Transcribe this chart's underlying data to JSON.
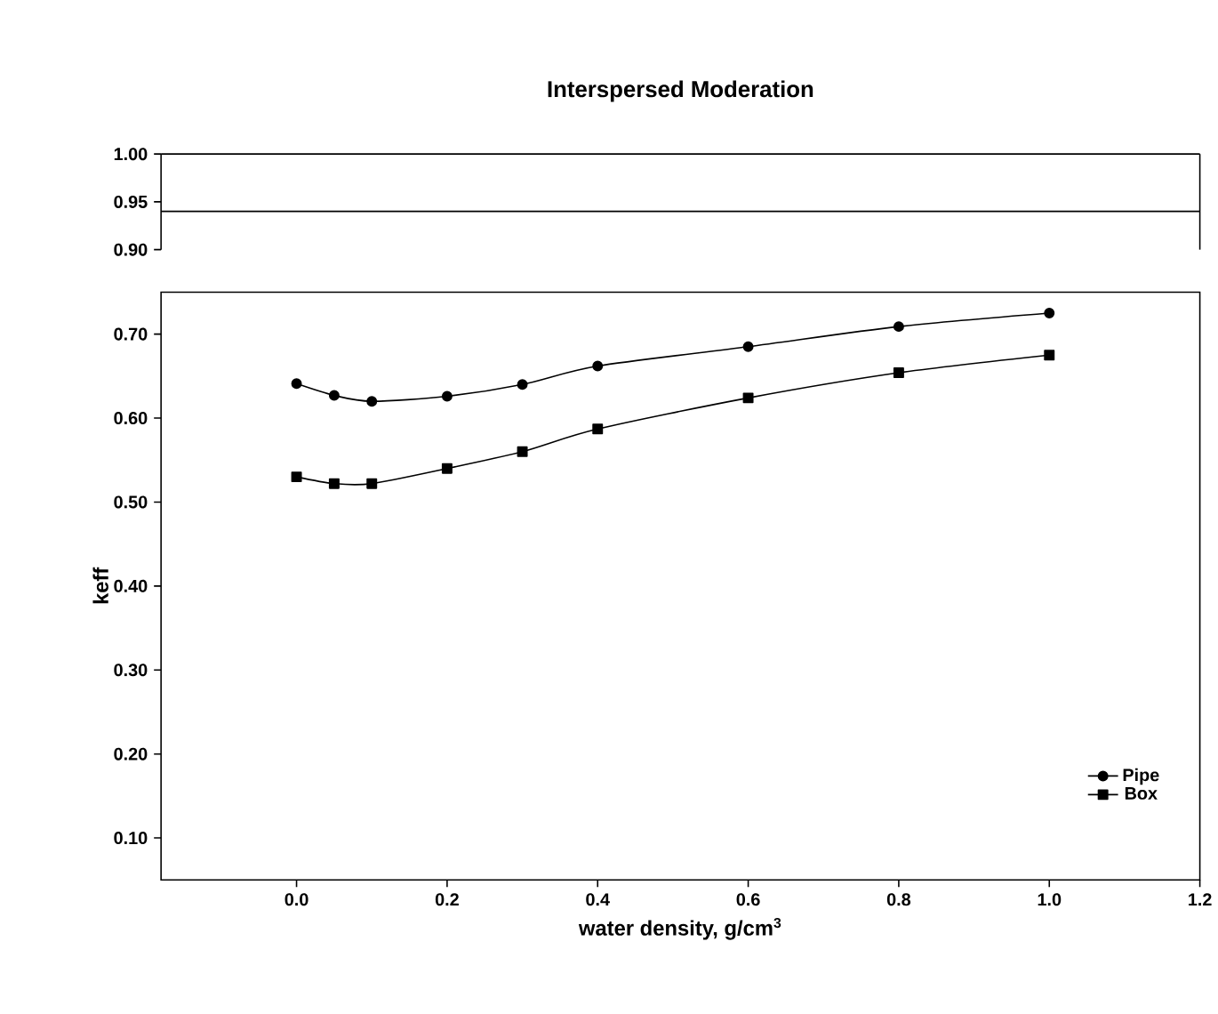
{
  "chart_data": [
    {
      "type": "line",
      "title": "Interspersed Moderation",
      "xlim": [
        -0.18,
        1.2
      ],
      "ylim": [
        0.9,
        1.0
      ],
      "yticks": [
        {
          "value": 0.9,
          "label": "0.90"
        },
        {
          "value": 0.95,
          "label": "0.95"
        },
        {
          "value": 1.0,
          "label": "1.00"
        }
      ],
      "tick_labels": "y",
      "ref_lines": [
        {
          "axis": "y",
          "value": 0.94,
          "color": "#000000"
        }
      ]
    },
    {
      "type": "line",
      "xlabel": "water density, g/cm$^{3}$",
      "ylabel": "keff",
      "xlim": [
        -0.18,
        1.2
      ],
      "ylim": [
        0.05,
        0.75
      ],
      "xticks": [
        {
          "value": 0,
          "label": "0.0"
        },
        {
          "value": 0.2,
          "label": "0.2"
        },
        {
          "value": 0.4,
          "label": "0.4"
        },
        {
          "value": 0.6,
          "label": "0.6"
        },
        {
          "value": 0.8,
          "label": "0.8"
        },
        {
          "value": 1.0,
          "label": "1.0"
        },
        {
          "value": 1.2,
          "label": "1.2"
        }
      ],
      "yticks": [
        {
          "value": 0.1,
          "label": "0.10"
        },
        {
          "value": 0.2,
          "label": "0.20"
        },
        {
          "value": 0.3,
          "label": "0.30"
        },
        {
          "value": 0.4,
          "label": "0.40"
        },
        {
          "value": 0.5,
          "label": "0.50"
        },
        {
          "value": 0.6,
          "label": "0.60"
        },
        {
          "value": 0.7,
          "label": "0.70"
        }
      ],
      "x": [
        0,
        0.05,
        0.1,
        0.2,
        0.3,
        0.4,
        0.6,
        0.8,
        1.0
      ],
      "legend": "bottom right",
      "series": [
        {
          "name": "Pipe",
          "color": "#000000",
          "marker": "circle",
          "values": [
            0.641,
            0.627,
            0.62,
            0.626,
            0.64,
            0.662,
            0.685,
            0.709,
            0.725
          ]
        },
        {
          "name": "Box",
          "color": "#000000",
          "marker": "square",
          "values": [
            0.53,
            0.522,
            0.522,
            0.54,
            0.56,
            0.587,
            0.624,
            0.654,
            0.675
          ]
        }
      ]
    }
  ]
}
